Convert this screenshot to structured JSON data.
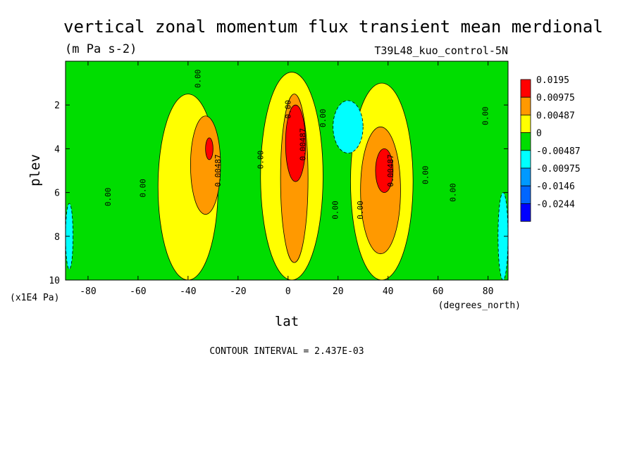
{
  "chart_data": {
    "type": "heatmap",
    "title": "vertical zonal momentum flux transient mean merdional",
    "subtitle": "(m Pa s-2)",
    "run_label": "T39L48_kuo_control-5N",
    "xlabel": "lat",
    "x_unit_label": "(degrees_north)",
    "ylabel": "plev",
    "y_unit_label": "(x1E4 Pa)",
    "xlim": [
      -89,
      88
    ],
    "ylim": [
      0,
      10
    ],
    "y_inverted": true,
    "x_ticks": [
      -80,
      -60,
      -40,
      -20,
      0,
      20,
      40,
      60,
      80
    ],
    "x_tick_labels": [
      "-80",
      "-60",
      "-40",
      "-20",
      "0",
      "20",
      "40",
      "60",
      "80"
    ],
    "y_ticks": [
      2,
      4,
      6,
      8,
      10
    ],
    "y_tick_labels": [
      "2",
      "4",
      "6",
      "8",
      "10"
    ],
    "contour_interval_text": "CONTOUR INTERVAL = 2.437E-03",
    "legend": {
      "placement": "right",
      "levels": [
        {
          "label": "0.0195",
          "color": "#ff0000"
        },
        {
          "label": "0.00975",
          "color": "#ff9900"
        },
        {
          "label": "0.00487",
          "color": "#ffff00"
        },
        {
          "label": "0",
          "color": "#00dd00"
        },
        {
          "label": "-0.00487",
          "color": "#00ffff"
        },
        {
          "label": "-0.00975",
          "color": "#0099ff"
        },
        {
          "label": "-0.0146",
          "color": "#0066ff"
        },
        {
          "label": "-0.0244",
          "color": "#0000ff"
        }
      ]
    },
    "colors": {
      "strong_positive": "#ff0000",
      "positive_high": "#ff9900",
      "positive": "#ffff00",
      "near_zero": "#00dd00",
      "negative": "#00ffff",
      "negative_strong": "#0099ff"
    },
    "features": [
      {
        "kind": "yellow",
        "lat": [
          -52,
          -28
        ],
        "plev": [
          1.5,
          10
        ]
      },
      {
        "kind": "orange",
        "lat": [
          -39,
          -27
        ],
        "plev": [
          2.5,
          7
        ]
      },
      {
        "kind": "red",
        "lat": [
          -33,
          -30
        ],
        "plev": [
          3.5,
          4.5
        ]
      },
      {
        "kind": "yellow",
        "lat": [
          -11,
          14
        ],
        "plev": [
          0.5,
          10
        ]
      },
      {
        "kind": "orange",
        "lat": [
          -3,
          8
        ],
        "plev": [
          1.5,
          9.2
        ]
      },
      {
        "kind": "red",
        "lat": [
          -1,
          7
        ],
        "plev": [
          2,
          5.5
        ]
      },
      {
        "kind": "yellow",
        "lat": [
          25,
          50
        ],
        "plev": [
          1,
          10
        ]
      },
      {
        "kind": "orange",
        "lat": [
          29,
          45
        ],
        "plev": [
          3,
          8.8
        ]
      },
      {
        "kind": "red",
        "lat": [
          35,
          42
        ],
        "plev": [
          4,
          6
        ]
      },
      {
        "kind": "cyan",
        "lat": [
          18,
          30
        ],
        "plev": [
          1.8,
          4.2
        ]
      },
      {
        "kind": "cyan",
        "lat": [
          -89,
          -86
        ],
        "plev": [
          6.5,
          9.5
        ]
      },
      {
        "kind": "cyan",
        "lat": [
          84,
          88
        ],
        "plev": [
          6,
          10
        ]
      }
    ],
    "contour_labels": [
      {
        "text": "0.00",
        "lat": -35,
        "plev": 0.8
      },
      {
        "text": "0.00",
        "lat": 1,
        "plev": 2.2
      },
      {
        "text": "0.00",
        "lat": 15,
        "plev": 2.6
      },
      {
        "text": "0.00",
        "lat": 80,
        "plev": 2.5
      },
      {
        "text": "0.00487",
        "lat": -27,
        "plev": 5
      },
      {
        "text": "0.00487",
        "lat": 7,
        "plev": 3.8
      },
      {
        "text": "0.00487",
        "lat": 42,
        "plev": 5
      },
      {
        "text": "0.00",
        "lat": -10,
        "plev": 4.5
      },
      {
        "text": "0.00",
        "lat": -71,
        "plev": 6.2
      },
      {
        "text": "0.00",
        "lat": -57,
        "plev": 5.8
      },
      {
        "text": "0.00",
        "lat": 20,
        "plev": 6.8
      },
      {
        "text": "0.00",
        "lat": 30,
        "plev": 6.8
      },
      {
        "text": "0.00",
        "lat": 56,
        "plev": 5.2
      },
      {
        "text": "0.00",
        "lat": 67,
        "plev": 6
      }
    ]
  }
}
